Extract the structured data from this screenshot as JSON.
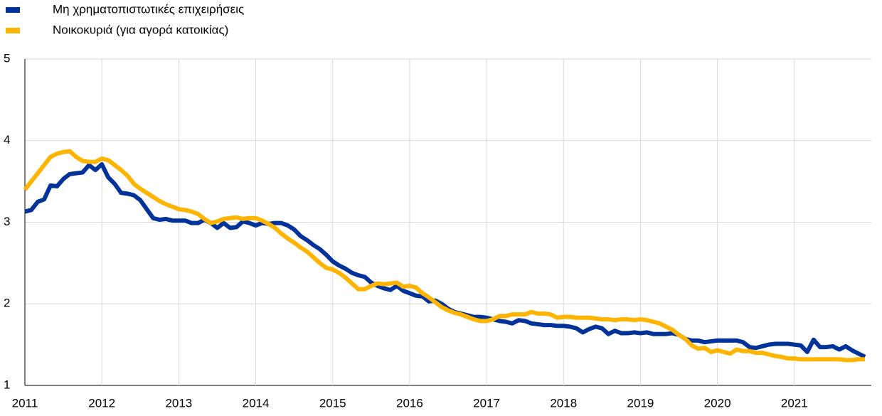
{
  "chart_data": {
    "type": "line",
    "series": [
      {
        "name": "Μη χρηματοπιστωτικές επιχειρήσεις",
        "color": "#003299",
        "values": [
          3.13,
          3.15,
          3.25,
          3.28,
          3.45,
          3.44,
          3.53,
          3.59,
          3.6,
          3.61,
          3.7,
          3.64,
          3.71,
          3.55,
          3.47,
          3.36,
          3.35,
          3.33,
          3.27,
          3.16,
          3.05,
          3.03,
          3.04,
          3.02,
          3.02,
          3.02,
          2.99,
          2.99,
          3.03,
          2.99,
          2.93,
          2.99,
          2.93,
          2.94,
          3.01,
          2.99,
          2.96,
          2.99,
          2.98,
          2.99,
          2.99,
          2.96,
          2.91,
          2.83,
          2.78,
          2.72,
          2.67,
          2.6,
          2.52,
          2.47,
          2.43,
          2.38,
          2.35,
          2.33,
          2.26,
          2.22,
          2.19,
          2.17,
          2.22,
          2.16,
          2.13,
          2.1,
          2.09,
          2.03,
          2.04,
          2.0,
          1.94,
          1.9,
          1.88,
          1.86,
          1.84,
          1.84,
          1.83,
          1.81,
          1.79,
          1.78,
          1.76,
          1.8,
          1.79,
          1.76,
          1.75,
          1.74,
          1.74,
          1.73,
          1.73,
          1.72,
          1.7,
          1.65,
          1.69,
          1.72,
          1.7,
          1.63,
          1.67,
          1.64,
          1.64,
          1.65,
          1.64,
          1.65,
          1.63,
          1.63,
          1.63,
          1.64,
          1.62,
          1.57,
          1.55,
          1.55,
          1.53,
          1.54,
          1.55,
          1.55,
          1.55,
          1.55,
          1.53,
          1.47,
          1.46,
          1.48,
          1.5,
          1.51,
          1.51,
          1.51,
          1.5,
          1.49,
          1.41,
          1.56,
          1.47,
          1.47,
          1.48,
          1.44,
          1.48,
          1.43,
          1.39,
          1.35
        ]
      },
      {
        "name": "Νοικοκυριά (για αγορά κατοικίας)",
        "color": "#ffb400",
        "values": [
          3.4,
          3.5,
          3.6,
          3.7,
          3.8,
          3.84,
          3.86,
          3.87,
          3.8,
          3.75,
          3.74,
          3.74,
          3.78,
          3.76,
          3.7,
          3.64,
          3.57,
          3.47,
          3.41,
          3.36,
          3.31,
          3.26,
          3.22,
          3.19,
          3.16,
          3.15,
          3.13,
          3.1,
          3.04,
          2.99,
          3.01,
          3.04,
          3.05,
          3.06,
          3.04,
          3.05,
          3.05,
          3.02,
          2.98,
          2.93,
          2.86,
          2.8,
          2.75,
          2.69,
          2.64,
          2.57,
          2.5,
          2.44,
          2.42,
          2.38,
          2.32,
          2.25,
          2.18,
          2.18,
          2.22,
          2.25,
          2.24,
          2.25,
          2.26,
          2.21,
          2.22,
          2.2,
          2.13,
          2.08,
          2.02,
          1.96,
          1.92,
          1.89,
          1.87,
          1.84,
          1.81,
          1.79,
          1.79,
          1.81,
          1.85,
          1.85,
          1.87,
          1.87,
          1.87,
          1.9,
          1.88,
          1.88,
          1.87,
          1.83,
          1.84,
          1.84,
          1.83,
          1.83,
          1.83,
          1.82,
          1.81,
          1.81,
          1.8,
          1.81,
          1.81,
          1.8,
          1.81,
          1.8,
          1.78,
          1.76,
          1.72,
          1.68,
          1.62,
          1.57,
          1.49,
          1.45,
          1.46,
          1.41,
          1.43,
          1.41,
          1.39,
          1.44,
          1.42,
          1.42,
          1.4,
          1.4,
          1.38,
          1.36,
          1.35,
          1.33,
          1.33,
          1.32,
          1.32,
          1.32,
          1.32,
          1.32,
          1.32,
          1.32,
          1.31,
          1.31,
          1.32,
          1.32
        ]
      }
    ],
    "x": [
      2011,
      2011.083,
      2011.167,
      2011.25,
      2011.333,
      2011.417,
      2011.5,
      2011.583,
      2011.667,
      2011.75,
      2011.833,
      2011.917,
      2012,
      2012.083,
      2012.167,
      2012.25,
      2012.333,
      2012.417,
      2012.5,
      2012.583,
      2012.667,
      2012.75,
      2012.833,
      2012.917,
      2013,
      2013.083,
      2013.167,
      2013.25,
      2013.333,
      2013.417,
      2013.5,
      2013.583,
      2013.667,
      2013.75,
      2013.833,
      2013.917,
      2014,
      2014.083,
      2014.167,
      2014.25,
      2014.333,
      2014.417,
      2014.5,
      2014.583,
      2014.667,
      2014.75,
      2014.833,
      2014.917,
      2015,
      2015.083,
      2015.167,
      2015.25,
      2015.333,
      2015.417,
      2015.5,
      2015.583,
      2015.667,
      2015.75,
      2015.833,
      2015.917,
      2016,
      2016.083,
      2016.167,
      2016.25,
      2016.333,
      2016.417,
      2016.5,
      2016.583,
      2016.667,
      2016.75,
      2016.833,
      2016.917,
      2017,
      2017.083,
      2017.167,
      2017.25,
      2017.333,
      2017.417,
      2017.5,
      2017.583,
      2017.667,
      2017.75,
      2017.833,
      2017.917,
      2018,
      2018.083,
      2018.167,
      2018.25,
      2018.333,
      2018.417,
      2018.5,
      2018.583,
      2018.667,
      2018.75,
      2018.833,
      2018.917,
      2019,
      2019.083,
      2019.167,
      2019.25,
      2019.333,
      2019.417,
      2019.5,
      2019.583,
      2019.667,
      2019.75,
      2019.833,
      2019.917,
      2020,
      2020.083,
      2020.167,
      2020.25,
      2020.333,
      2020.417,
      2020.5,
      2020.583,
      2020.667,
      2020.75,
      2020.833,
      2020.917,
      2021,
      2021.083,
      2021.167,
      2021.25,
      2021.333,
      2021.417,
      2021.5,
      2021.583,
      2021.667,
      2021.75,
      2021.833,
      2021.917
    ],
    "xlim": [
      2011,
      2022
    ],
    "xticks": [
      2011,
      2012,
      2013,
      2014,
      2015,
      2016,
      2017,
      2018,
      2019,
      2020,
      2021
    ],
    "ylim": [
      1,
      5
    ],
    "yticks": [
      1,
      2,
      3,
      4,
      5
    ],
    "grid": true
  }
}
